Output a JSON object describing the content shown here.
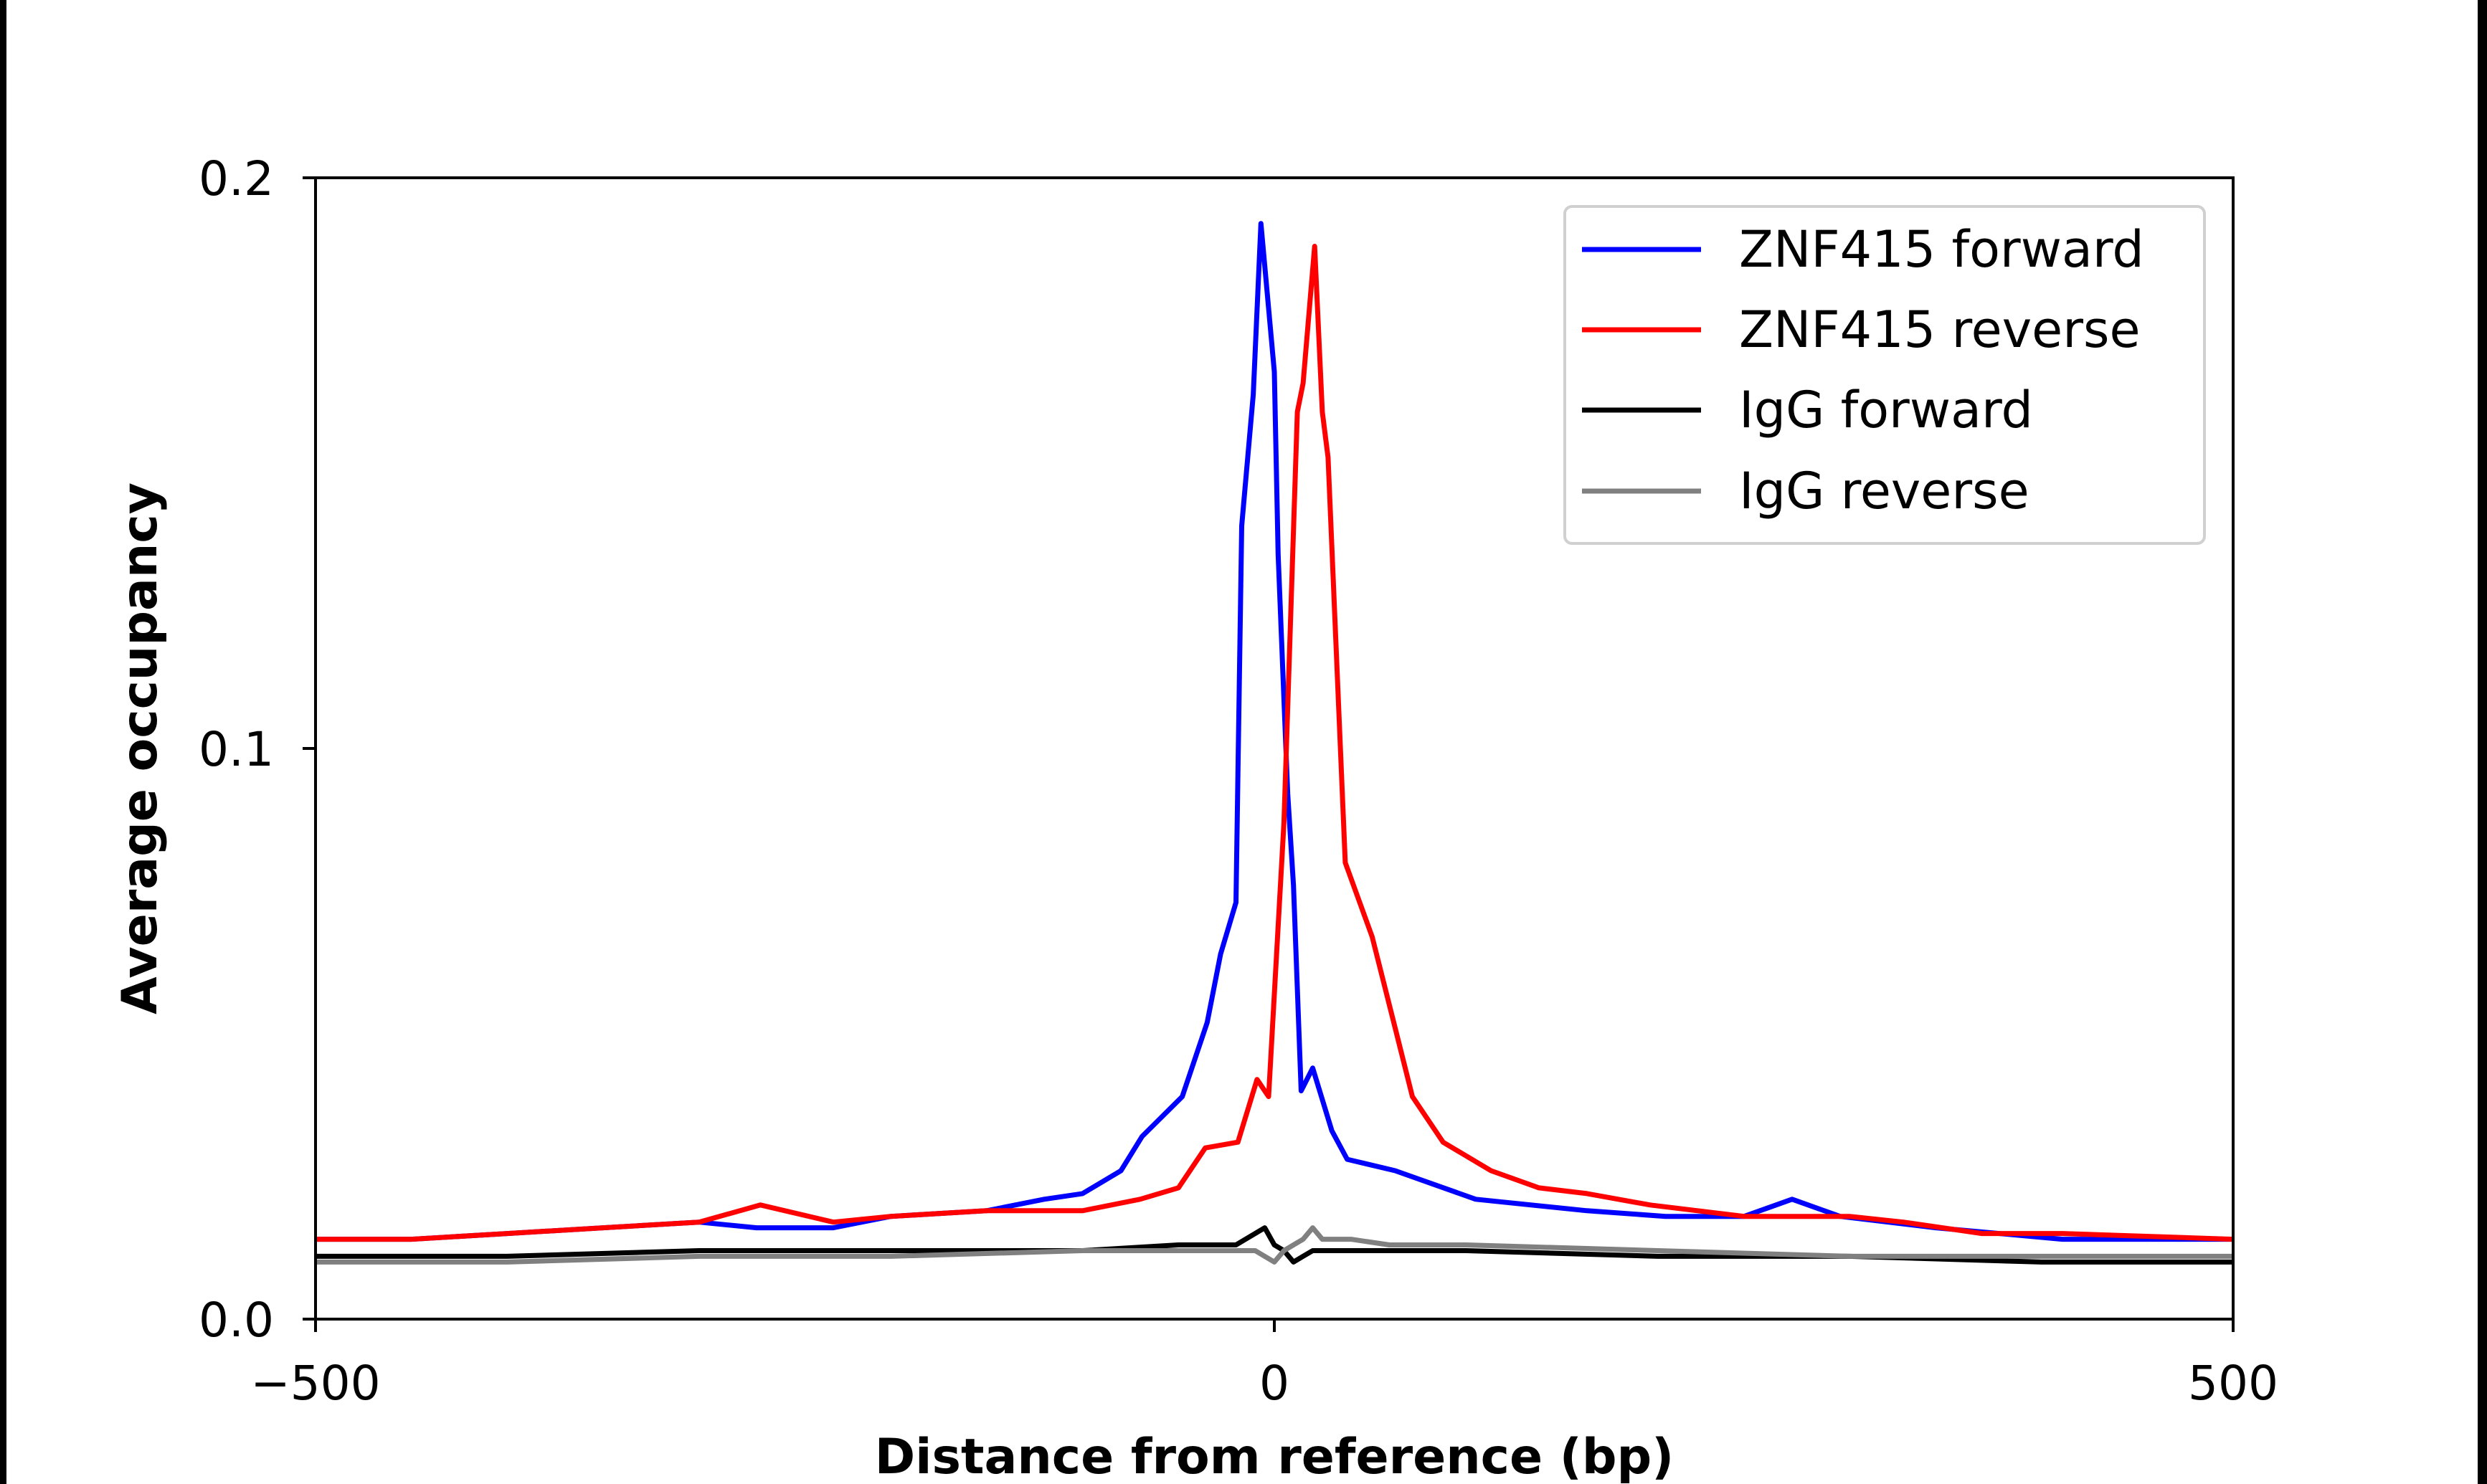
{
  "chart_data": {
    "type": "line",
    "title": "",
    "xlabel": "Distance from reference (bp)",
    "ylabel": "Average occupancy",
    "xlim": [
      -500,
      500
    ],
    "ylim": [
      0,
      0.2
    ],
    "xticks": [
      -500,
      0,
      500
    ],
    "xtick_labels": [
      "−500",
      "0",
      "500"
    ],
    "yticks": [
      0,
      0.1,
      0.2
    ],
    "ytick_labels": [
      "0.0",
      "0.1",
      "0.2"
    ],
    "grid": false,
    "legend_position": "top-right",
    "series": [
      {
        "name": "ZNF415 forward",
        "color": "#0000ff",
        "x": [
          -500,
          -450,
          -400,
          -350,
          -300,
          -270,
          -230,
          -200,
          -150,
          -120,
          -100,
          -80,
          -69,
          -48,
          -35,
          -28,
          -20,
          -17,
          -11,
          -7,
          0,
          2,
          7,
          10,
          14,
          20,
          30,
          38,
          63,
          105,
          163,
          204,
          245,
          270,
          295,
          345,
          411,
          500
        ],
        "y": [
          0.014,
          0.014,
          0.015,
          0.016,
          0.017,
          0.016,
          0.016,
          0.018,
          0.019,
          0.021,
          0.022,
          0.026,
          0.032,
          0.039,
          0.052,
          0.064,
          0.073,
          0.139,
          0.162,
          0.192,
          0.166,
          0.134,
          0.092,
          0.076,
          0.04,
          0.044,
          0.033,
          0.028,
          0.026,
          0.021,
          0.019,
          0.018,
          0.018,
          0.021,
          0.018,
          0.016,
          0.014,
          0.014
        ]
      },
      {
        "name": "ZNF415 reverse",
        "color": "#ff0000",
        "x": [
          -500,
          -450,
          -400,
          -350,
          -300,
          -268,
          -230,
          -200,
          -150,
          -100,
          -70,
          -50,
          -36,
          -19,
          -9,
          -3,
          5,
          12,
          15,
          21,
          25,
          28,
          37,
          51,
          63,
          72,
          88,
          113,
          138,
          163,
          196,
          245,
          300,
          328,
          369,
          411,
          500
        ],
        "y": [
          0.014,
          0.014,
          0.015,
          0.016,
          0.017,
          0.02,
          0.017,
          0.018,
          0.019,
          0.019,
          0.021,
          0.023,
          0.03,
          0.031,
          0.042,
          0.039,
          0.087,
          0.159,
          0.164,
          0.188,
          0.159,
          0.151,
          0.08,
          0.067,
          0.051,
          0.039,
          0.031,
          0.026,
          0.023,
          0.022,
          0.02,
          0.018,
          0.018,
          0.017,
          0.015,
          0.015,
          0.014
        ]
      },
      {
        "name": "IgG forward",
        "color": "#000000",
        "x": [
          -500,
          -400,
          -300,
          -200,
          -100,
          -50,
          -20,
          -5,
          0,
          5,
          10,
          15,
          20,
          50,
          100,
          200,
          300,
          400,
          450,
          500
        ],
        "y": [
          0.011,
          0.011,
          0.012,
          0.012,
          0.012,
          0.013,
          0.013,
          0.016,
          0.013,
          0.012,
          0.01,
          0.011,
          0.012,
          0.012,
          0.012,
          0.011,
          0.011,
          0.01,
          0.01,
          0.01
        ]
      },
      {
        "name": "IgG reverse",
        "color": "#808080",
        "x": [
          -500,
          -400,
          -300,
          -200,
          -100,
          -50,
          -10,
          0,
          5,
          10,
          15,
          20,
          25,
          40,
          60,
          100,
          200,
          300,
          400,
          500
        ],
        "y": [
          0.01,
          0.01,
          0.011,
          0.011,
          0.012,
          0.012,
          0.012,
          0.01,
          0.012,
          0.013,
          0.014,
          0.016,
          0.014,
          0.014,
          0.013,
          0.013,
          0.012,
          0.011,
          0.011,
          0.011
        ]
      }
    ]
  }
}
